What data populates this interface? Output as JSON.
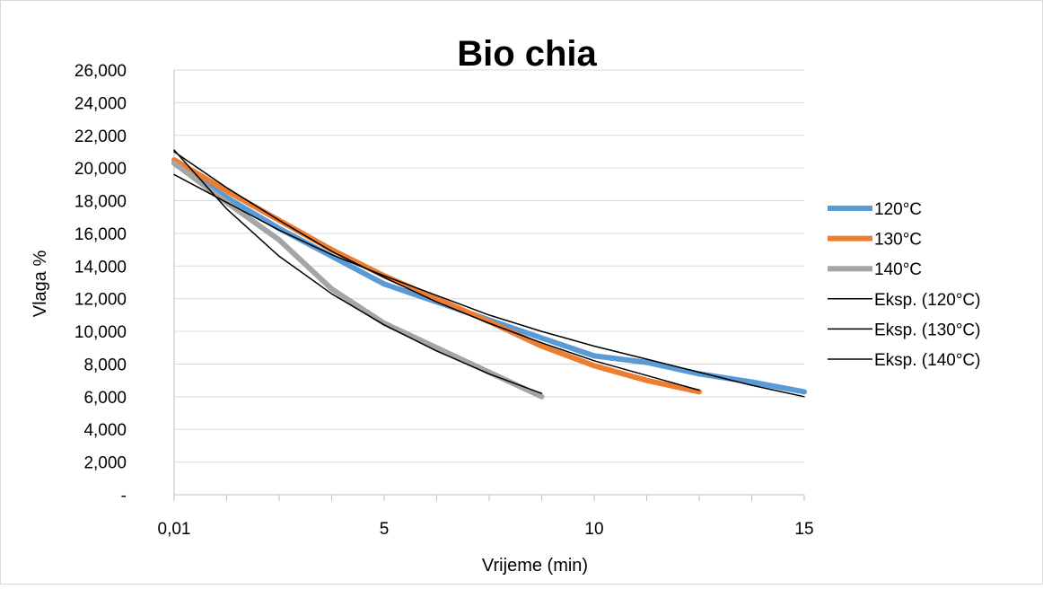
{
  "chart_data": {
    "type": "line",
    "title": "Bio chia",
    "xlabel": "Vrijeme (min)",
    "ylabel": "Vlaga %",
    "xlim": [
      0,
      15
    ],
    "ylim": [
      0,
      26
    ],
    "x_tick_values": [
      0,
      5,
      10,
      15
    ],
    "x_tick_labels": [
      "0,01",
      "5",
      "10",
      "15"
    ],
    "y_tick_values": [
      0,
      2,
      4,
      6,
      8,
      10,
      12,
      14,
      16,
      18,
      20,
      22,
      24,
      26
    ],
    "y_tick_labels": [
      "-",
      "2,000",
      "4,000",
      "6,000",
      "8,000",
      "10,000",
      "12,000",
      "14,000",
      "16,000",
      "18,000",
      "20,000",
      "22,000",
      "24,000",
      "26,000"
    ],
    "grid": "horizontal",
    "legend_position": "right",
    "series": [
      {
        "name": "120°C",
        "color": "#5B9BD5",
        "style": "thick",
        "x": [
          0,
          1.25,
          2.5,
          3.75,
          5,
          6.25,
          7.5,
          8.75,
          10,
          11.25,
          12.5,
          13.75,
          15
        ],
        "y": [
          20.3,
          18.2,
          16.3,
          14.6,
          12.9,
          11.8,
          10.7,
          9.6,
          8.5,
          8.1,
          7.4,
          6.9,
          6.3
        ]
      },
      {
        "name": "130°C",
        "color": "#ED7D31",
        "style": "thick",
        "x": [
          0,
          1.25,
          2.5,
          3.75,
          5,
          6.25,
          7.5,
          8.75,
          10,
          11.25,
          12.5
        ],
        "y": [
          20.5,
          18.6,
          16.8,
          15.0,
          13.4,
          12.0,
          10.6,
          9.1,
          7.9,
          7.0,
          6.3
        ]
      },
      {
        "name": "140°C",
        "color": "#A5A5A5",
        "style": "thick",
        "x": [
          0,
          1.25,
          2.5,
          3.75,
          5,
          6.25,
          7.5,
          8.75
        ],
        "y": [
          20.3,
          17.9,
          15.6,
          12.6,
          10.5,
          9.0,
          7.5,
          6.0
        ]
      },
      {
        "name": "Eksp. (120°C)",
        "color": "#000000",
        "style": "thin",
        "x": [
          0,
          1.25,
          2.5,
          3.75,
          5,
          6.25,
          7.5,
          8.75,
          10,
          11.25,
          12.5,
          13.75,
          15
        ],
        "y": [
          19.6,
          17.9,
          16.2,
          14.7,
          13.4,
          12.2,
          11.0,
          10.0,
          9.1,
          8.3,
          7.5,
          6.7,
          6.0
        ]
      },
      {
        "name": "Eksp. (130°C)",
        "color": "#000000",
        "style": "thin",
        "x": [
          0,
          1.25,
          2.5,
          3.75,
          5,
          6.25,
          7.5,
          8.75,
          10,
          11.25,
          12.5
        ],
        "y": [
          21.0,
          18.8,
          16.8,
          14.9,
          13.3,
          11.8,
          10.5,
          9.3,
          8.2,
          7.3,
          6.4
        ]
      },
      {
        "name": "Eksp. (140°C)",
        "color": "#000000",
        "style": "thin",
        "x": [
          0,
          1.25,
          2.5,
          3.75,
          5,
          6.25,
          7.5,
          8.75
        ],
        "y": [
          21.1,
          17.5,
          14.6,
          12.3,
          10.4,
          8.8,
          7.4,
          6.2
        ]
      }
    ]
  }
}
